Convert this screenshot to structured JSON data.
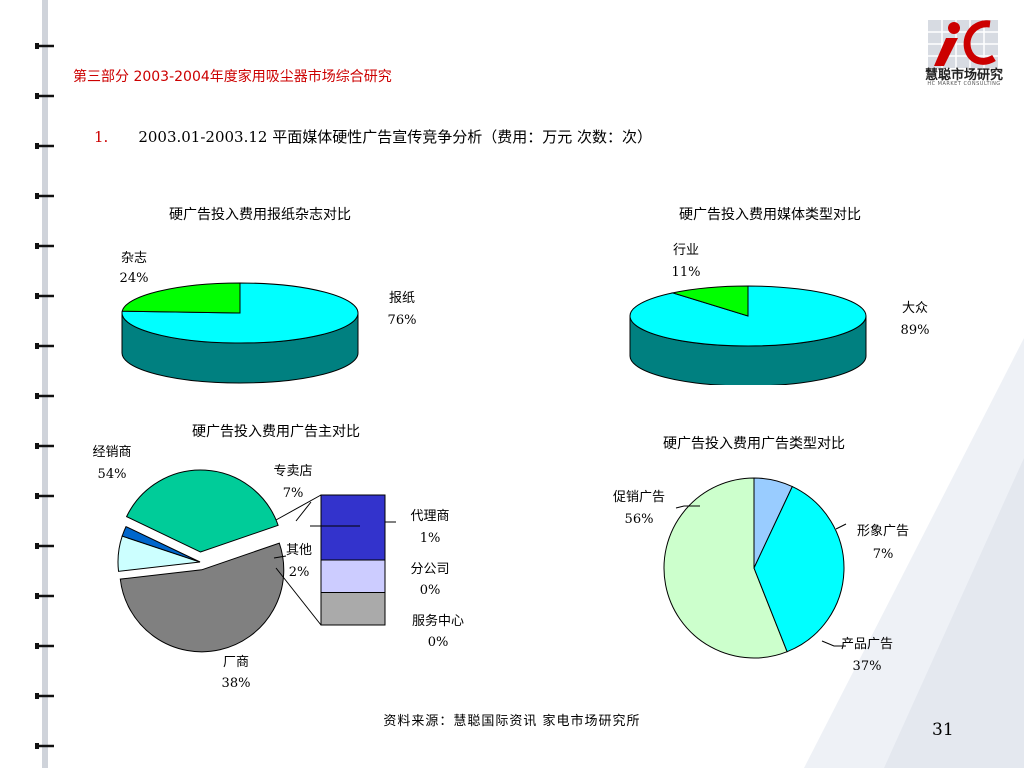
{
  "header": {
    "title": "第三部分   2003-2004年度家用吸尘器市场综合研究",
    "logo_text": "慧聪市场研究",
    "logo_subtext": "HC MARKET CONSULTING"
  },
  "subtitle": {
    "number": "1.",
    "text": "2003.01-2003.12 平面媒体硬性广告宣传竞争分析（费用：万元   次数：次）"
  },
  "colors": {
    "cyan": "#00ffff",
    "green": "#00ff00",
    "teal_side": "#008080",
    "gray": "#808080",
    "light_cyan": "#ccffff",
    "blue": "#0066cc",
    "sea_green": "#00cc99",
    "indigo": "#3333cc",
    "lavender": "#ccccff",
    "silver": "#aaaaaa",
    "pale_green": "#ccffcc",
    "light_blue": "#99ccff",
    "accent_red": "#cc0000"
  },
  "chart_data": [
    {
      "type": "pie",
      "title": "硬广告投入费用报纸杂志对比",
      "style": "3d",
      "slices": [
        {
          "label": "报纸",
          "pct_label": "76%",
          "value": 76,
          "color": "#00ffff"
        },
        {
          "label": "杂志",
          "pct_label": "24%",
          "value": 24,
          "color": "#00ff00"
        }
      ]
    },
    {
      "type": "pie",
      "title": "硬广告投入费用媒体类型对比",
      "style": "3d",
      "slices": [
        {
          "label": "大众",
          "pct_label": "89%",
          "value": 89,
          "color": "#00ffff"
        },
        {
          "label": "行业",
          "pct_label": "11%",
          "value": 11,
          "color": "#00ff00"
        }
      ]
    },
    {
      "type": "pie",
      "title": "硬广告投入费用广告主对比",
      "style": "pie-of-bar",
      "slices": [
        {
          "label": "经销商",
          "pct_label": "54%",
          "value": 54,
          "color": "#808080"
        },
        {
          "label": "专卖店",
          "pct_label": "7%",
          "value": 7,
          "color": "#ccffff"
        },
        {
          "label": "其他",
          "pct_label": "2%",
          "value": 2,
          "color": "#0066cc"
        },
        {
          "label": "厂商",
          "pct_label": "38%",
          "value": 38,
          "color": "#00cc99"
        }
      ],
      "breakdown": [
        {
          "label": "代理商",
          "pct_label": "1%",
          "value": 1,
          "color": "#3333cc"
        },
        {
          "label": "分公司",
          "pct_label": "0%",
          "value": 0.5,
          "color": "#ccccff"
        },
        {
          "label": "服务中心",
          "pct_label": "0%",
          "value": 0.5,
          "color": "#aaaaaa"
        }
      ]
    },
    {
      "type": "pie",
      "title": "硬广告投入费用广告类型对比",
      "style": "flat",
      "slices": [
        {
          "label": "促销广告",
          "pct_label": "56%",
          "value": 56,
          "color": "#ccffcc"
        },
        {
          "label": "形象广告",
          "pct_label": "7%",
          "value": 7,
          "color": "#99ccff"
        },
        {
          "label": "产品广告",
          "pct_label": "37%",
          "value": 37,
          "color": "#00ffff"
        }
      ]
    }
  ],
  "footer": {
    "source": "资料来源：慧聪国际资讯 家电市场研究所",
    "page_number": "31"
  }
}
